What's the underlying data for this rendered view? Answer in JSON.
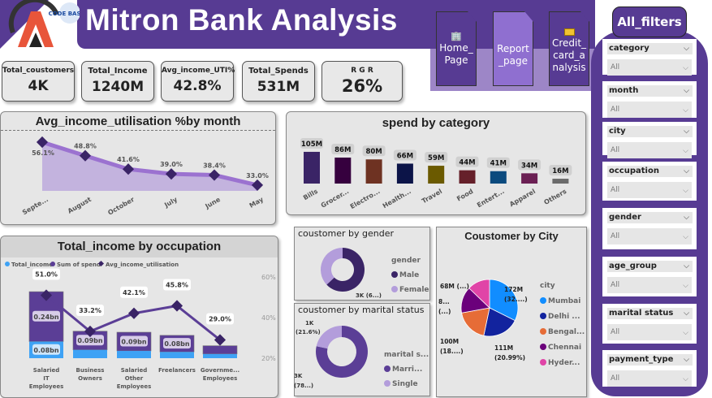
{
  "header": {
    "title": "Mitron Bank Analysis",
    "logo_text": "CODE BASICS"
  },
  "kpis": [
    {
      "label": "Total_coustomers",
      "value": "4K"
    },
    {
      "label": "Total_Income",
      "value": "1240M"
    },
    {
      "label": "Avg_income_UTI%",
      "value": "42.8%"
    },
    {
      "label": "Total_Spends",
      "value": "531M"
    },
    {
      "label": "R G R",
      "value": "26%"
    }
  ],
  "nav": {
    "home": "Home_ Page",
    "report": "Report _page",
    "credit": "Credit_ card_a nalysis"
  },
  "filters": {
    "title": "All_filters",
    "items": [
      {
        "label": "category",
        "value": "All"
      },
      {
        "label": "month",
        "value": "All"
      },
      {
        "label": "city",
        "value": "All"
      },
      {
        "label": "occupation",
        "value": "All"
      },
      {
        "label": "gender",
        "value": "All"
      },
      {
        "label": "age_group",
        "value": "All"
      },
      {
        "label": "marital status",
        "value": "All"
      },
      {
        "label": "payment_type",
        "value": "All"
      }
    ]
  },
  "colors": {
    "brand": "#573b93",
    "line": "#9b72d0",
    "marker": "#3a2466",
    "income": "#3ea2f5",
    "spend": "#5b3e96"
  },
  "chart_data": [
    {
      "type": "area",
      "title": "Avg_income_utilisation %by month",
      "categories": [
        "Septe...",
        "August",
        "October",
        "July",
        "June",
        "May"
      ],
      "values": [
        56.1,
        48.8,
        41.6,
        39.0,
        38.4,
        33.0
      ],
      "labels": [
        "56.1%",
        "48.8%",
        "41.6%",
        "39.0%",
        "38.4%",
        "33.0%"
      ]
    },
    {
      "type": "bar",
      "title": "spend by category",
      "categories": [
        "Bills",
        "Grocer...",
        "Electro...",
        "Health...",
        "Travel",
        "Food",
        "Entert...",
        "Apparel",
        "Others"
      ],
      "values": [
        105,
        86,
        80,
        66,
        59,
        44,
        41,
        34,
        16
      ],
      "labels": [
        "105M",
        "86M",
        "80M",
        "66M",
        "59M",
        "44M",
        "41M",
        "34M",
        "16M"
      ],
      "colors": [
        "#3a2466",
        "#36003e",
        "#6e3222",
        "#0c1448",
        "#6b5a00",
        "#66202a",
        "#0b4a7e",
        "#6b2054",
        "#6b6b6b"
      ]
    },
    {
      "type": "bar",
      "title": "Total_income by occupation",
      "legend": [
        "Total_income",
        "Sum of spend",
        "Avg_income_utilisation"
      ],
      "categories": [
        "Salaried IT Employees",
        "Business Owners",
        "Salaried Other Employees",
        "Freelancers",
        "Governme... Employees"
      ],
      "series": [
        {
          "name": "Total_income",
          "values": [
            0.08,
            0.04,
            0.035,
            0.03,
            0.02
          ]
        },
        {
          "name": "Sum of spend",
          "values": [
            0.24,
            0.09,
            0.09,
            0.08,
            0.04
          ]
        },
        {
          "name": "Avg_income_utilisation",
          "values": [
            51.0,
            33.2,
            42.1,
            45.8,
            29.0
          ]
        }
      ],
      "income_labels": [
        "0.08bn"
      ],
      "spend_labels": [
        "0.24bn",
        "0.09bn",
        "0.09bn",
        "0.08bn"
      ],
      "line_labels": [
        "51.0%",
        "33.2%",
        "42.1%",
        "45.8%",
        "29.0%"
      ],
      "y2_ticks": [
        "60%",
        "40%",
        "20%"
      ],
      "y2lim": [
        20,
        60
      ]
    },
    {
      "type": "pie",
      "title": "coustomer by gender",
      "legend_title": "gender",
      "categories": [
        "Male",
        "Female"
      ],
      "values": [
        63,
        37
      ],
      "colors": [
        "#3a2466",
        "#b39ddb"
      ],
      "labels": [
        "3K (6...)"
      ]
    },
    {
      "type": "pie",
      "title": "coustomer by marital status",
      "legend_title": "marital s...",
      "categories": [
        "Marri...",
        "Single"
      ],
      "values": [
        78.4,
        21.6
      ],
      "colors": [
        "#5b3e96",
        "#b39ddb"
      ],
      "labels": [
        "3K (78...)",
        "1K (21.6%)"
      ]
    },
    {
      "type": "pie",
      "title": "Coustomer by City",
      "legend_title": "city",
      "categories": [
        "Mumbai",
        "Delhi ...",
        "Bengal...",
        "Chennai",
        "Hyder..."
      ],
      "values": [
        172,
        111,
        100,
        80,
        68
      ],
      "colors": [
        "#118dff",
        "#12239e",
        "#e66c37",
        "#6b007b",
        "#e044a7"
      ],
      "labels": [
        "172M (32....)",
        "111M (20.99%)",
        "100M (18....)",
        "8... (...)",
        "68M (...)"
      ]
    }
  ]
}
